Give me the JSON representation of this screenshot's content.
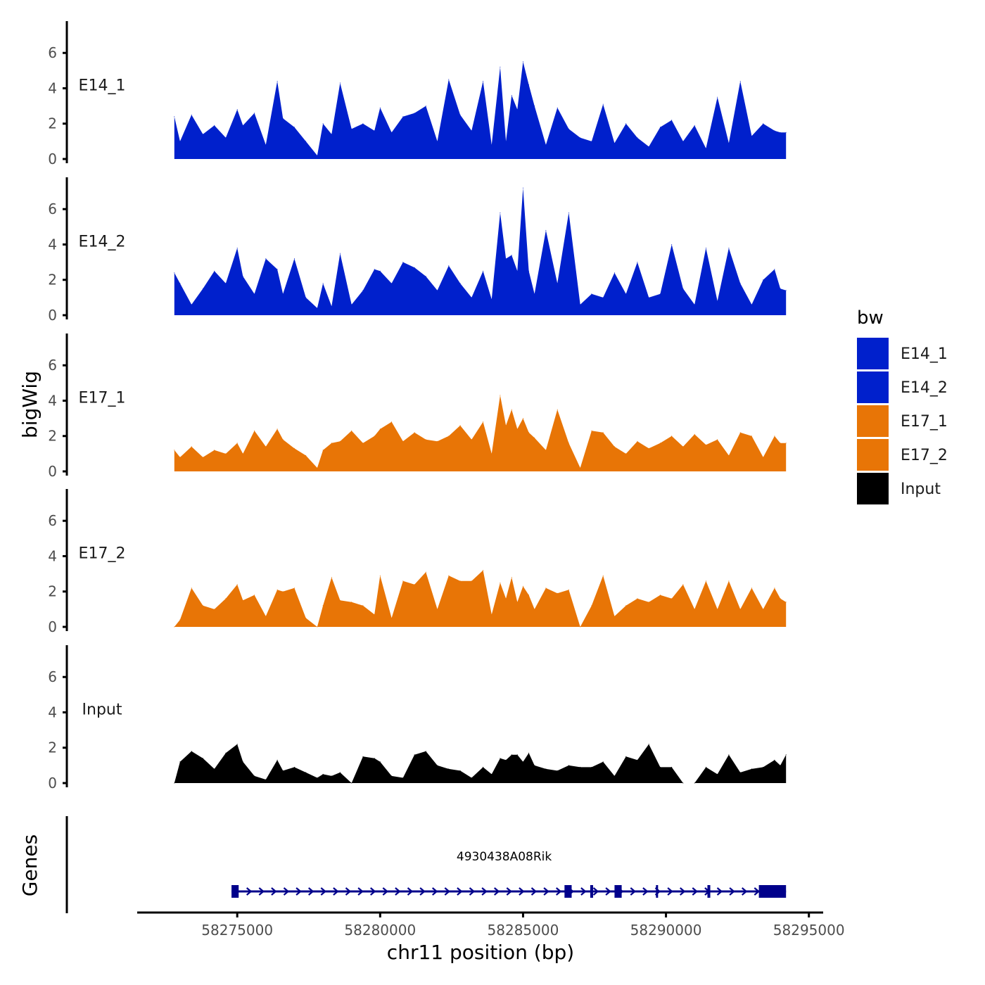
{
  "chart_data": {
    "type": "area",
    "y_axis_title": "bigWig",
    "genes_axis_title": "Genes",
    "x_axis_title": "chr11 position (bp)",
    "x_range": [
      58271500,
      58295500
    ],
    "x_ticks": [
      58275000,
      58280000,
      58285000,
      58290000,
      58295000
    ],
    "x_tick_labels": [
      "58275000",
      "58280000",
      "58285000",
      "58290000",
      "58295000"
    ],
    "y_range": [
      0,
      7.8
    ],
    "y_ticks": [
      0,
      2,
      4,
      6
    ],
    "y_tick_labels": [
      "0",
      "2",
      "4",
      "6"
    ],
    "legend": {
      "title": "bw",
      "entries": [
        {
          "label": "E14_1",
          "color": "#0020CC"
        },
        {
          "label": "E14_2",
          "color": "#0020CC"
        },
        {
          "label": "E17_1",
          "color": "#E87506"
        },
        {
          "label": "E17_2",
          "color": "#E87506"
        },
        {
          "label": "Input",
          "color": "#000000"
        }
      ]
    },
    "series": [
      {
        "name": "E14_1",
        "color": "#0020CC",
        "x": [
          58272800,
          58273000,
          58273400,
          58273800,
          58274200,
          58274600,
          58275000,
          58275200,
          58275600,
          58276000,
          58276400,
          58276600,
          58277000,
          58277400,
          58277800,
          58278000,
          58278300,
          58278600,
          58279000,
          58279400,
          58279800,
          58280000,
          58280400,
          58280800,
          58281200,
          58281600,
          58282000,
          58282400,
          58282800,
          58283200,
          58283600,
          58283900,
          58284200,
          58284400,
          58284600,
          58284800,
          58285000,
          58285200,
          58285400,
          58285800,
          58286200,
          58286600,
          58287000,
          58287400,
          58287800,
          58288200,
          58288600,
          58289000,
          58289400,
          58289800,
          58290200,
          58290600,
          58291000,
          58291400,
          58291800,
          58292200,
          58292600,
          58293000,
          58293400,
          58293800,
          58294000,
          58294200
        ],
        "y": [
          2.4,
          1.0,
          2.5,
          1.4,
          1.9,
          1.2,
          2.8,
          1.9,
          2.6,
          0.8,
          4.4,
          2.3,
          1.8,
          1.0,
          0.2,
          2.0,
          1.4,
          4.3,
          1.7,
          2.0,
          1.6,
          2.9,
          1.5,
          2.4,
          2.6,
          3.0,
          1.0,
          4.5,
          2.5,
          1.6,
          4.4,
          0.8,
          5.2,
          1.0,
          3.6,
          2.8,
          5.5,
          4.2,
          3.0,
          0.8,
          2.9,
          1.7,
          1.2,
          1.0,
          3.1,
          0.9,
          2.0,
          1.2,
          0.7,
          1.8,
          2.2,
          1.0,
          1.9,
          0.6,
          3.5,
          0.9,
          4.4,
          1.3,
          2.0,
          1.6,
          1.5,
          1.5
        ]
      },
      {
        "name": "E14_2",
        "color": "#0020CC",
        "x": [
          58272800,
          58273000,
          58273400,
          58273800,
          58274200,
          58274600,
          58275000,
          58275200,
          58275600,
          58276000,
          58276400,
          58276600,
          58277000,
          58277400,
          58277800,
          58278000,
          58278300,
          58278600,
          58279000,
          58279400,
          58279800,
          58280000,
          58280400,
          58280800,
          58281200,
          58281600,
          58282000,
          58282400,
          58282800,
          58283200,
          58283600,
          58283900,
          58284200,
          58284400,
          58284600,
          58284800,
          58285000,
          58285200,
          58285400,
          58285800,
          58286200,
          58286600,
          58287000,
          58287400,
          58287800,
          58288200,
          58288600,
          58289000,
          58289400,
          58289800,
          58290200,
          58290600,
          58291000,
          58291400,
          58291800,
          58292200,
          58292600,
          58293000,
          58293400,
          58293800,
          58294000,
          58294200
        ],
        "y": [
          2.4,
          1.8,
          0.6,
          1.5,
          2.5,
          1.8,
          3.8,
          2.2,
          1.2,
          3.2,
          2.6,
          1.2,
          3.2,
          1.0,
          0.4,
          1.8,
          0.5,
          3.5,
          0.6,
          1.4,
          2.6,
          2.5,
          1.8,
          3.0,
          2.7,
          2.2,
          1.4,
          2.8,
          1.8,
          1.0,
          2.5,
          0.9,
          5.8,
          3.2,
          3.4,
          2.5,
          7.2,
          2.5,
          1.2,
          4.8,
          1.8,
          5.8,
          0.6,
          1.2,
          1.0,
          2.4,
          1.2,
          3.0,
          1.0,
          1.2,
          4.0,
          1.5,
          0.6,
          3.8,
          0.8,
          3.8,
          1.8,
          0.6,
          2.0,
          2.6,
          1.5,
          1.4
        ]
      },
      {
        "name": "E17_1",
        "color": "#E87506",
        "x": [
          58272800,
          58273000,
          58273400,
          58273800,
          58274200,
          58274600,
          58275000,
          58275200,
          58275600,
          58276000,
          58276400,
          58276600,
          58277000,
          58277400,
          58277800,
          58278000,
          58278300,
          58278600,
          58279000,
          58279400,
          58279800,
          58280000,
          58280400,
          58280800,
          58281200,
          58281600,
          58282000,
          58282400,
          58282800,
          58283200,
          58283600,
          58283900,
          58284200,
          58284400,
          58284600,
          58284800,
          58285000,
          58285200,
          58285400,
          58285800,
          58286200,
          58286600,
          58287000,
          58287400,
          58287800,
          58288200,
          58288600,
          58289000,
          58289400,
          58289800,
          58290200,
          58290600,
          58291000,
          58291400,
          58291800,
          58292200,
          58292600,
          58293000,
          58293400,
          58293800,
          58294000,
          58294200
        ],
        "y": [
          1.2,
          0.8,
          1.4,
          0.8,
          1.2,
          1.0,
          1.6,
          1.0,
          2.3,
          1.4,
          2.4,
          1.8,
          1.3,
          0.9,
          0.2,
          1.2,
          1.6,
          1.7,
          2.3,
          1.6,
          2.0,
          2.4,
          2.8,
          1.7,
          2.2,
          1.8,
          1.7,
          2.0,
          2.6,
          1.8,
          2.8,
          1.0,
          4.3,
          2.6,
          3.5,
          2.4,
          3.0,
          2.2,
          1.9,
          1.2,
          3.5,
          1.6,
          0.2,
          2.3,
          2.2,
          1.4,
          1.0,
          1.7,
          1.3,
          1.6,
          2.0,
          1.4,
          2.1,
          1.5,
          1.8,
          0.9,
          2.2,
          2.0,
          0.8,
          2.0,
          1.6,
          1.6
        ]
      },
      {
        "name": "E17_2",
        "color": "#E87506",
        "x": [
          58272800,
          58273000,
          58273400,
          58273800,
          58274200,
          58274600,
          58275000,
          58275200,
          58275600,
          58276000,
          58276400,
          58276600,
          58277000,
          58277400,
          58277800,
          58278000,
          58278300,
          58278600,
          58279000,
          58279400,
          58279800,
          58280000,
          58280400,
          58280800,
          58281200,
          58281600,
          58282000,
          58282400,
          58282800,
          58283200,
          58283600,
          58283900,
          58284200,
          58284400,
          58284600,
          58284800,
          58285000,
          58285200,
          58285400,
          58285800,
          58286200,
          58286600,
          58287000,
          58287400,
          58287800,
          58288200,
          58288600,
          58289000,
          58289400,
          58289800,
          58290200,
          58290600,
          58291000,
          58291400,
          58291800,
          58292200,
          58292600,
          58293000,
          58293400,
          58293800,
          58294000,
          58294200
        ],
        "y": [
          0.0,
          0.4,
          2.2,
          1.2,
          1.0,
          1.6,
          2.4,
          1.5,
          1.8,
          0.6,
          2.1,
          2.0,
          2.2,
          0.5,
          0.0,
          1.2,
          2.8,
          1.5,
          1.4,
          1.2,
          0.7,
          2.9,
          0.5,
          2.6,
          2.4,
          3.1,
          1.0,
          2.9,
          2.6,
          2.6,
          3.2,
          0.7,
          2.5,
          1.6,
          2.8,
          1.4,
          2.3,
          1.8,
          1.0,
          2.2,
          1.9,
          2.1,
          0.0,
          1.2,
          2.9,
          0.6,
          1.2,
          1.6,
          1.4,
          1.8,
          1.6,
          2.4,
          1.0,
          2.6,
          1.0,
          2.6,
          1.0,
          2.2,
          1.0,
          2.2,
          1.6,
          1.4
        ]
      },
      {
        "name": "Input",
        "color": "#000000",
        "x": [
          58272800,
          58273000,
          58273400,
          58273800,
          58274200,
          58274600,
          58275000,
          58275200,
          58275600,
          58276000,
          58276400,
          58276600,
          58277000,
          58277400,
          58277800,
          58278000,
          58278300,
          58278600,
          58279000,
          58279400,
          58279800,
          58280000,
          58280400,
          58280800,
          58281200,
          58281600,
          58282000,
          58282400,
          58282800,
          58283200,
          58283600,
          58283900,
          58284200,
          58284400,
          58284600,
          58284800,
          58285000,
          58285200,
          58285400,
          58285800,
          58286200,
          58286600,
          58287000,
          58287400,
          58287800,
          58288200,
          58288600,
          58289000,
          58289400,
          58289800,
          58290200,
          58290600,
          58291000,
          58291400,
          58291800,
          58292200,
          58292600,
          58293000,
          58293400,
          58293800,
          58294000,
          58294200
        ],
        "y": [
          0.0,
          1.2,
          1.8,
          1.4,
          0.8,
          1.7,
          2.2,
          1.2,
          0.4,
          0.2,
          1.3,
          0.7,
          0.9,
          0.6,
          0.3,
          0.5,
          0.4,
          0.6,
          0.0,
          1.5,
          1.4,
          1.2,
          0.4,
          0.3,
          1.6,
          1.8,
          1.0,
          0.8,
          0.7,
          0.3,
          0.9,
          0.5,
          1.4,
          1.3,
          1.6,
          1.6,
          1.2,
          1.7,
          1.0,
          0.8,
          0.7,
          1.0,
          0.9,
          0.9,
          1.2,
          0.4,
          1.5,
          1.3,
          2.2,
          0.9,
          0.9,
          0.0,
          0.0,
          0.9,
          0.5,
          1.6,
          0.6,
          0.8,
          0.9,
          1.3,
          1.0,
          1.6
        ]
      }
    ],
    "gene": {
      "name": "4930438A08Rik",
      "strand": "+",
      "start": 58274800,
      "end": 58294200,
      "exons": [
        [
          58274800,
          58275050
        ],
        [
          58286450,
          58286700
        ],
        [
          58287350,
          58287450
        ],
        [
          58288200,
          58288450
        ],
        [
          58289650,
          58289700
        ],
        [
          58291450,
          58291550
        ],
        [
          58293250,
          58294200
        ]
      ]
    }
  }
}
